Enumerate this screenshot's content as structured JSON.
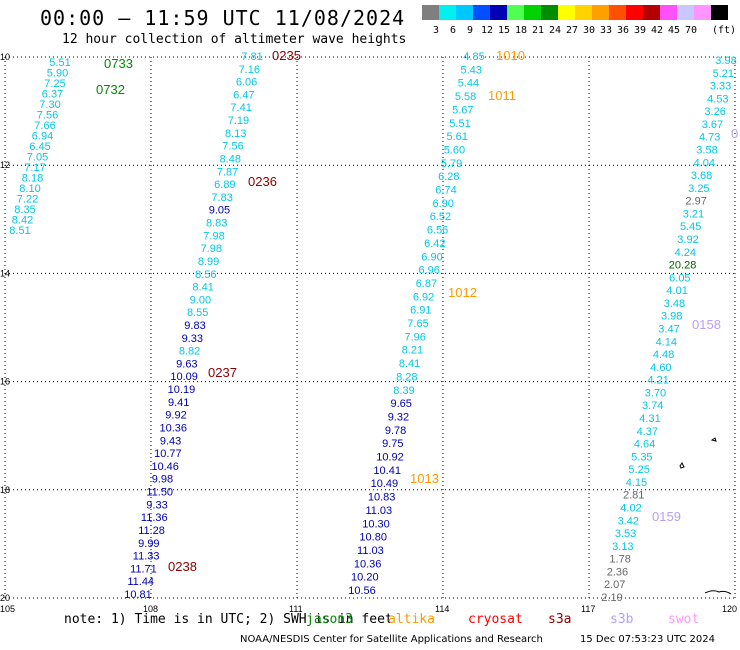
{
  "header": {
    "title": "00:00 – 11:59 UTC 11/08/2024",
    "subtitle": "12 hour collection of altimeter wave heights"
  },
  "colorbar": {
    "colors": [
      "#7f7f7f",
      "#00f0f0",
      "#00c8ff",
      "#0050ff",
      "#0000b4",
      "#50ff50",
      "#00d200",
      "#008c00",
      "#ffff00",
      "#ffd200",
      "#ffa000",
      "#ff5000",
      "#ff0000",
      "#b40000",
      "#ff50ff",
      "#c8c8ff",
      "#ff96ff",
      "#000000"
    ],
    "labels": [
      "3",
      "6",
      "9",
      "12",
      "15",
      "18",
      "21",
      "24",
      "27",
      "30",
      "33",
      "36",
      "39",
      "42",
      "45",
      "70"
    ],
    "unit": "(ft)"
  },
  "axes": {
    "lon_ticks": [
      "105",
      "108",
      "111",
      "114",
      "117",
      "120"
    ],
    "lat_ticks": [
      "10",
      "12",
      "14",
      "16",
      "18",
      "20"
    ]
  },
  "colors": {
    "cyan": "#00c8e6",
    "blue": "#0000b4",
    "green": "#008c00",
    "orange": "#ff9900",
    "darkred": "#8b0000",
    "darkgreen": "#006400",
    "gray": "#666666",
    "lavender": "#b4a0ff"
  },
  "tracks": [
    {
      "points": [
        [
          "5.51",
          "c"
        ],
        [
          "5.90",
          "c"
        ],
        [
          "7.25",
          "c"
        ],
        [
          "6.37",
          "c"
        ],
        [
          "7.30",
          "c"
        ],
        [
          "7.56",
          "c"
        ],
        [
          "7.66",
          "c"
        ],
        [
          "6.94",
          "c"
        ],
        [
          "6.45",
          "c"
        ],
        [
          "7.05",
          "c"
        ],
        [
          "7.17",
          "c"
        ],
        [
          "8.18",
          "c"
        ],
        [
          "8.10",
          "c"
        ],
        [
          "7.22",
          "c"
        ],
        [
          "8.35",
          "c"
        ],
        [
          "8.42",
          "c"
        ],
        [
          "8.51",
          "c"
        ]
      ]
    },
    {
      "points": [
        [
          "7.81",
          "c"
        ],
        [
          "7.16",
          "c"
        ],
        [
          "6.06",
          "c"
        ],
        [
          "6.47",
          "c"
        ],
        [
          "7.41",
          "c"
        ],
        [
          "7.19",
          "c"
        ],
        [
          "8.13",
          "c"
        ],
        [
          "7.56",
          "c"
        ],
        [
          "8.48",
          "c"
        ],
        [
          "7.87",
          "c"
        ],
        [
          "6.89",
          "c"
        ],
        [
          "7.83",
          "c"
        ],
        [
          "9.05",
          "b"
        ],
        [
          "8.83",
          "c"
        ],
        [
          "7.98",
          "c"
        ],
        [
          "7.98",
          "c"
        ],
        [
          "8.99",
          "c"
        ],
        [
          "8.56",
          "c"
        ],
        [
          "8.41",
          "c"
        ],
        [
          "9.00",
          "c"
        ],
        [
          "8.55",
          "c"
        ],
        [
          "9.83",
          "b"
        ],
        [
          "9.33",
          "b"
        ],
        [
          "8.82",
          "c"
        ],
        [
          "9.63",
          "b"
        ],
        [
          "10.09",
          "b"
        ],
        [
          "10.19",
          "b"
        ],
        [
          "9.41",
          "b"
        ],
        [
          "9.92",
          "b"
        ],
        [
          "10.36",
          "b"
        ],
        [
          "9.43",
          "b"
        ],
        [
          "10.77",
          "b"
        ],
        [
          "10.46",
          "b"
        ],
        [
          "9.98",
          "b"
        ],
        [
          "11.50",
          "b"
        ],
        [
          "9.33",
          "b"
        ],
        [
          "11.36",
          "b"
        ],
        [
          "11.28",
          "b"
        ],
        [
          "9.99",
          "b"
        ],
        [
          "11.33",
          "b"
        ],
        [
          "11.71",
          "b"
        ],
        [
          "11.44",
          "b"
        ],
        [
          "10.81",
          "b"
        ]
      ]
    },
    {
      "points": [
        [
          "4.85",
          "c"
        ],
        [
          "5.43",
          "c"
        ],
        [
          "5.44",
          "c"
        ],
        [
          "5.58",
          "c"
        ],
        [
          "5.67",
          "c"
        ],
        [
          "5.51",
          "c"
        ],
        [
          "5.61",
          "c"
        ],
        [
          "5.60",
          "c"
        ],
        [
          "5.79",
          "c"
        ],
        [
          "6.28",
          "c"
        ],
        [
          "6.74",
          "c"
        ],
        [
          "6.90",
          "c"
        ],
        [
          "6.52",
          "c"
        ],
        [
          "6.56",
          "c"
        ],
        [
          "6.42",
          "c"
        ],
        [
          "6.90",
          "c"
        ],
        [
          "6.96",
          "c"
        ],
        [
          "6.87",
          "c"
        ],
        [
          "6.92",
          "c"
        ],
        [
          "6.91",
          "c"
        ],
        [
          "7.65",
          "c"
        ],
        [
          "7.96",
          "c"
        ],
        [
          "8.21",
          "c"
        ],
        [
          "8.41",
          "c"
        ],
        [
          "8.28",
          "c"
        ],
        [
          "8.39",
          "c"
        ],
        [
          "9.65",
          "b"
        ],
        [
          "9.32",
          "b"
        ],
        [
          "9.78",
          "b"
        ],
        [
          "9.75",
          "b"
        ],
        [
          "10.92",
          "b"
        ],
        [
          "10.41",
          "b"
        ],
        [
          "10.49",
          "b"
        ],
        [
          "10.83",
          "b"
        ],
        [
          "11.03",
          "b"
        ],
        [
          "10.30",
          "b"
        ],
        [
          "10.80",
          "b"
        ],
        [
          "11.03",
          "b"
        ],
        [
          "10.36",
          "b"
        ],
        [
          "10.20",
          "b"
        ],
        [
          "10.56",
          "b"
        ]
      ]
    },
    {
      "points": [
        [
          "3.98",
          "c"
        ],
        [
          "5.21",
          "c"
        ],
        [
          "3.33",
          "c"
        ],
        [
          "4.53",
          "c"
        ],
        [
          "3.26",
          "c"
        ],
        [
          "3.67",
          "c"
        ],
        [
          "4.73",
          "c"
        ],
        [
          "3.58",
          "c"
        ],
        [
          "4.04",
          "c"
        ],
        [
          "3.68",
          "c"
        ],
        [
          "3.25",
          "c"
        ],
        [
          "2.97",
          "g"
        ],
        [
          "3.21",
          "c"
        ],
        [
          "5.45",
          "c"
        ],
        [
          "3.92",
          "c"
        ],
        [
          "4.24",
          "c"
        ],
        [
          "20.28",
          "dg"
        ],
        [
          "6.05",
          "c"
        ],
        [
          "4.01",
          "c"
        ],
        [
          "3.48",
          "c"
        ],
        [
          "3.98",
          "c"
        ],
        [
          "3.47",
          "c"
        ],
        [
          "4.14",
          "c"
        ],
        [
          "4.48",
          "c"
        ],
        [
          "4.60",
          "c"
        ],
        [
          "4.21",
          "c"
        ],
        [
          "3.70",
          "c"
        ],
        [
          "3.74",
          "c"
        ],
        [
          "4.31",
          "c"
        ],
        [
          "4.37",
          "c"
        ],
        [
          "4.64",
          "c"
        ],
        [
          "5.35",
          "c"
        ],
        [
          "5.25",
          "c"
        ],
        [
          "4.15",
          "c"
        ],
        [
          "2.81",
          "g"
        ],
        [
          "4.02",
          "c"
        ],
        [
          "3.42",
          "c"
        ],
        [
          "3.53",
          "c"
        ],
        [
          "3.13",
          "c"
        ],
        [
          "1.78",
          "g"
        ],
        [
          "2.36",
          "g"
        ],
        [
          "2.07",
          "g"
        ],
        [
          "2.19",
          "g"
        ]
      ]
    }
  ],
  "times": [
    {
      "text": "0733",
      "color": "green"
    },
    {
      "text": "0732",
      "color": "green"
    },
    {
      "text": "0235",
      "color": "darkred"
    },
    {
      "text": "0236",
      "color": "darkred"
    },
    {
      "text": "0237",
      "color": "darkred"
    },
    {
      "text": "0238",
      "color": "darkred"
    },
    {
      "text": "1010",
      "color": "orange"
    },
    {
      "text": "1011",
      "color": "orange"
    },
    {
      "text": "1012",
      "color": "orange"
    },
    {
      "text": "1013",
      "color": "orange"
    },
    {
      "text": "0158",
      "color": "lavender"
    },
    {
      "text": "0159",
      "color": "lavender"
    },
    {
      "text": "0",
      "color": "lavender"
    }
  ],
  "footer": {
    "note": "note: 1) Time is in UTC; 2) SWH is in feet",
    "satellites": [
      {
        "name": "jason3",
        "color": "#008c00"
      },
      {
        "name": "altika",
        "color": "#ff9900"
      },
      {
        "name": "cryosat",
        "color": "#ff0000"
      },
      {
        "name": "s3a",
        "color": "#8b0000"
      },
      {
        "name": "s3b",
        "color": "#b4a0ff"
      },
      {
        "name": "swot",
        "color": "#ff96ff"
      }
    ],
    "credit": "NOAA/NESDIS Center for Satellite Applications and Research",
    "stamp": "15 Dec 07:53:23 UTC 2024"
  }
}
